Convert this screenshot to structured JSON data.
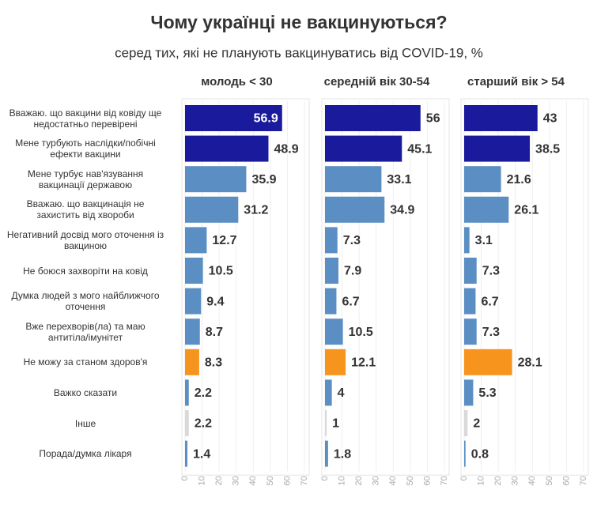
{
  "chart_data": {
    "type": "bar",
    "title": "Чому українці не вакцинуються?",
    "subtitle": "серед тих, які не планують вакцинуватись від COVID-19, %",
    "categories": [
      "Вважаю. що вакцини від ковіду ще недостатньо перевірені",
      "Мене турбують наслідки/побічні ефекти вакцини",
      "Мене турбує нав'язування вакцинації державою",
      "Вважаю. що вакцинація не захистить від хвороби",
      "Негативний досвід мого оточення із вакциною",
      "Не боюся захворіти на ковід",
      "Думка людей з мого найближчого оточення",
      "Вже перехворів(ла) та маю антитіла/імунітет",
      "Не можу за станом здоров'я",
      "Важко сказати",
      "Інше",
      "Порада/думка лікаря"
    ],
    "colors": [
      "#1a1a9c",
      "#1a1a9c",
      "#5b8fc4",
      "#5b8fc4",
      "#5b8fc4",
      "#5b8fc4",
      "#5b8fc4",
      "#5b8fc4",
      "#f7941d",
      "#5b8fc4",
      "#d9d9d9",
      "#5b8fc4"
    ],
    "xlim": [
      0,
      70
    ],
    "xticks": [
      0,
      10,
      20,
      30,
      40,
      50,
      60,
      70
    ],
    "series": [
      {
        "name": "молодь < 30",
        "values": [
          56.9,
          48.9,
          35.9,
          31.2,
          12.7,
          10.5,
          9.4,
          8.7,
          8.3,
          2.2,
          2.2,
          1.4
        ]
      },
      {
        "name": "середній вік 30-54",
        "values": [
          56,
          45.1,
          33.1,
          34.9,
          7.3,
          7.9,
          6.7,
          10.5,
          12.1,
          4,
          1,
          1.8
        ]
      },
      {
        "name": "старший вік > 54",
        "values": [
          43,
          38.5,
          21.6,
          26.1,
          3.1,
          7.3,
          6.7,
          7.3,
          28.1,
          5.3,
          2,
          0.8
        ]
      }
    ]
  }
}
